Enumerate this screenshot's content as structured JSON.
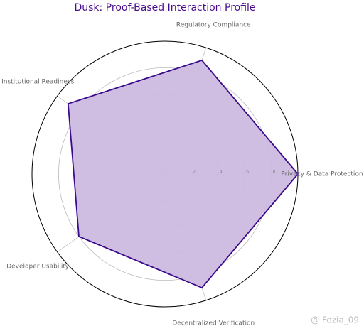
{
  "chart_data": {
    "type": "radar",
    "title": "Dusk: Proof-Based Interaction Profile",
    "categories": [
      "Privacy & Data Protection",
      "Regulatory Compliance",
      "Institutional Readiness",
      "Developer Usability",
      "Decentralized Verification"
    ],
    "values": [
      10,
      9,
      9,
      8,
      9
    ],
    "color": "#3a0a8c",
    "fill": "#cdbbe0",
    "ylim": [
      0,
      10
    ],
    "yticks": [
      2,
      4,
      6,
      8
    ],
    "grid": true,
    "watermark": "@ Fozia_09"
  }
}
